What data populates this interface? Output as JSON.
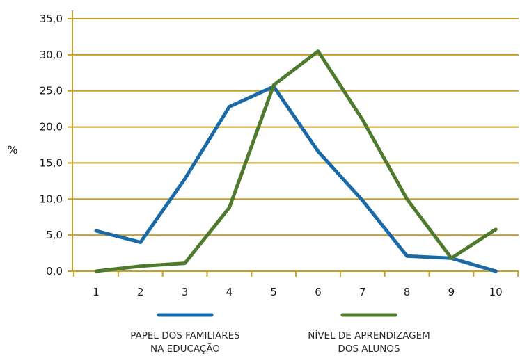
{
  "chart_data": {
    "type": "line",
    "ylabel": "%",
    "xlabel": "",
    "ylim": [
      0,
      35
    ],
    "ytick_labels": [
      "0,0",
      "5,0",
      "10,0",
      "15,0",
      "20,0",
      "25,0",
      "30,0",
      "35,0"
    ],
    "ytick_values": [
      0,
      5,
      10,
      15,
      20,
      25,
      30,
      35
    ],
    "categories": [
      "1",
      "2",
      "3",
      "4",
      "5",
      "6",
      "7",
      "8",
      "9",
      "10"
    ],
    "grid": true,
    "legend_position": "bottom",
    "series": [
      {
        "name_lines": [
          "PAPEL DOS FAMILIARES",
          "NA EDUCAÇÃO"
        ],
        "color": "#1a6aa8",
        "values": [
          5.6,
          4.0,
          12.8,
          22.8,
          25.6,
          16.6,
          9.8,
          2.1,
          1.8,
          0.0
        ]
      },
      {
        "name_lines": [
          "NÍVEL DE APRENDIZAGEM",
          "DOS ALUNOS"
        ],
        "color": "#4e7a2e",
        "values": [
          0.0,
          0.7,
          1.1,
          8.8,
          25.8,
          30.5,
          21.0,
          10.0,
          1.8,
          5.8
        ]
      }
    ],
    "axis_color": "#c8a023",
    "grid_color": "#c8a023"
  }
}
